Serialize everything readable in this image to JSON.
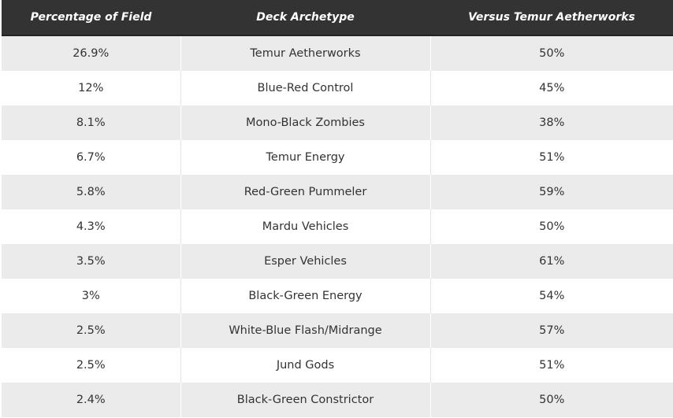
{
  "table": {
    "header": [
      "Percentage of Field",
      "Deck Archetype",
      "Versus Temur Aetherworks"
    ],
    "rows": [
      [
        "26.9%",
        "Temur Aetherworks",
        "50%"
      ],
      [
        "12%",
        "Blue-Red Control",
        "45%"
      ],
      [
        "8.1%",
        "Mono-Black Zombies",
        "38%"
      ],
      [
        "6.7%",
        "Temur Energy",
        "51%"
      ],
      [
        "5.8%",
        "Red-Green Pummeler",
        "59%"
      ],
      [
        "4.3%",
        "Mardu Vehicles",
        "50%"
      ],
      [
        "3.5%",
        "Esper Vehicles",
        "61%"
      ],
      [
        "3%",
        "Black-Green Energy",
        "54%"
      ],
      [
        "2.5%",
        "White-Blue Flash/Midrange",
        "57%"
      ],
      [
        "2.5%",
        "Jund Gods",
        "51%"
      ],
      [
        "2.4%",
        "Black-Green Constrictor",
        "50%"
      ]
    ]
  }
}
